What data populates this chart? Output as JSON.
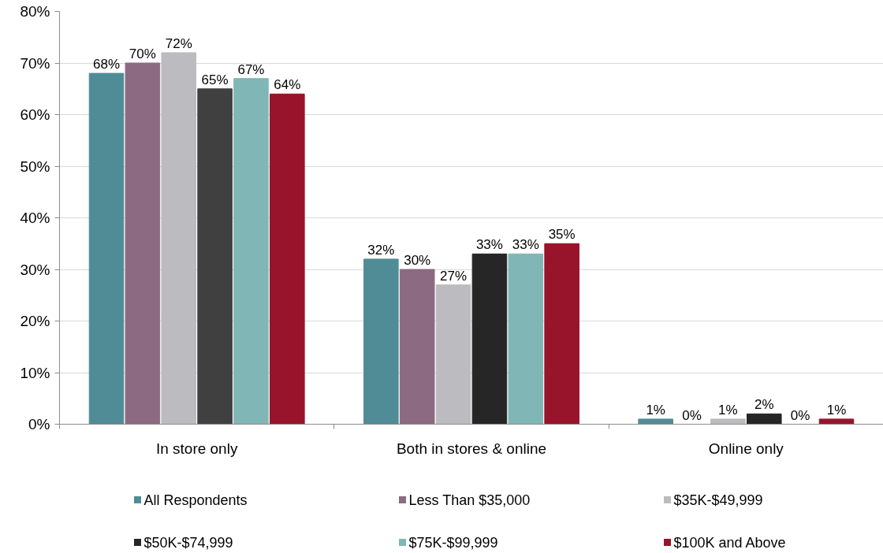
{
  "chart_data": {
    "type": "bar",
    "categories": [
      "In store only",
      "Both in stores & online",
      "Online only"
    ],
    "series": [
      {
        "name": "All Respondents",
        "color": "#508c96",
        "values": [
          68,
          32,
          1
        ],
        "value_labels": [
          "68%",
          "32%",
          "1%"
        ]
      },
      {
        "name": "Less Than $35,000",
        "color": "#8c6a82",
        "values": [
          70,
          30,
          0
        ],
        "value_labels": [
          "70%",
          "30%",
          "0%"
        ]
      },
      {
        "name": "$35K-$49,999",
        "color": "#bcbbc0",
        "values": [
          72,
          27,
          1
        ],
        "value_labels": [
          "72%",
          "27%",
          "1%"
        ]
      },
      {
        "name": "$50K-$74,999",
        "color": "#262626",
        "colors": [
          "#404040",
          "#262626",
          "#262626"
        ],
        "values": [
          65,
          33,
          2
        ],
        "value_labels": [
          "65%",
          "33%",
          "2%"
        ]
      },
      {
        "name": "$75K-$99,999",
        "color": "#80b6b6",
        "values": [
          67,
          33,
          0
        ],
        "value_labels": [
          "67%",
          "33%",
          "0%"
        ]
      },
      {
        "name": "$100K and Above",
        "color": "#98142a",
        "values": [
          64,
          35,
          1
        ],
        "value_labels": [
          "64%",
          "35%",
          "1%"
        ]
      }
    ],
    "ylim": [
      0,
      80
    ],
    "yticks": [
      {
        "value": 0,
        "label": "0%"
      },
      {
        "value": 10,
        "label": "10%"
      },
      {
        "value": 20,
        "label": "20%"
      },
      {
        "value": 30,
        "label": "30%"
      },
      {
        "value": 40,
        "label": "40%"
      },
      {
        "value": 50,
        "label": "50%"
      },
      {
        "value": 60,
        "label": "60%"
      },
      {
        "value": 70,
        "label": "70%"
      },
      {
        "value": 80,
        "label": "80%"
      }
    ],
    "grid": "y",
    "legend": "bottom"
  }
}
